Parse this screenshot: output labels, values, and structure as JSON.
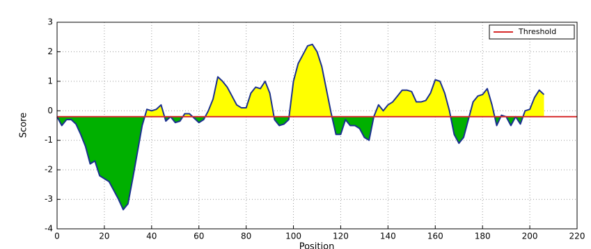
{
  "chart_data": {
    "type": "area",
    "x_label": "Position",
    "y_label": "Score",
    "x": [
      0,
      2,
      4,
      6,
      8,
      10,
      12,
      14,
      16,
      18,
      20,
      22,
      24,
      26,
      28,
      30,
      32,
      34,
      36,
      38,
      40,
      42,
      44,
      46,
      48,
      50,
      52,
      54,
      56,
      58,
      60,
      62,
      64,
      66,
      68,
      70,
      72,
      74,
      76,
      78,
      80,
      82,
      84,
      86,
      88,
      90,
      92,
      94,
      96,
      98,
      100,
      102,
      104,
      106,
      108,
      110,
      112,
      114,
      116,
      118,
      120,
      122,
      124,
      126,
      128,
      130,
      132,
      134,
      136,
      138,
      140,
      142,
      144,
      146,
      148,
      150,
      152,
      154,
      156,
      158,
      160,
      162,
      164,
      166,
      168,
      170,
      172,
      174,
      176,
      178,
      180,
      182,
      184,
      186,
      188,
      190,
      192,
      194,
      196,
      198,
      200,
      202,
      204,
      206
    ],
    "values": [
      -0.2,
      -0.5,
      -0.3,
      -0.3,
      -0.45,
      -0.8,
      -1.2,
      -1.8,
      -1.7,
      -2.2,
      -2.3,
      -2.4,
      -2.7,
      -3.0,
      -3.35,
      -3.15,
      -2.3,
      -1.4,
      -0.5,
      0.05,
      0.0,
      0.05,
      0.2,
      -0.35,
      -0.2,
      -0.4,
      -0.35,
      -0.1,
      -0.1,
      -0.25,
      -0.4,
      -0.3,
      0.0,
      0.4,
      1.15,
      1.0,
      0.8,
      0.5,
      0.2,
      0.1,
      0.1,
      0.6,
      0.8,
      0.75,
      1.0,
      0.6,
      -0.3,
      -0.5,
      -0.45,
      -0.3,
      1.0,
      1.6,
      1.9,
      2.2,
      2.25,
      2.0,
      1.5,
      0.7,
      -0.1,
      -0.8,
      -0.8,
      -0.3,
      -0.5,
      -0.5,
      -0.6,
      -0.9,
      -1.0,
      -0.2,
      0.2,
      0.0,
      0.2,
      0.3,
      0.5,
      0.7,
      0.7,
      0.65,
      0.3,
      0.3,
      0.35,
      0.6,
      1.05,
      1.0,
      0.6,
      0.0,
      -0.8,
      -1.1,
      -0.9,
      -0.3,
      0.3,
      0.5,
      0.55,
      0.75,
      0.2,
      -0.5,
      -0.15,
      -0.2,
      -0.5,
      -0.2,
      -0.45,
      0.0,
      0.05,
      0.45,
      0.7,
      0.55
    ],
    "line_color": "#1a2f8f",
    "above_color": "#ffff00",
    "below_color": "#00b000",
    "threshold": {
      "name": "Threshold",
      "value": -0.2,
      "color": "#d62728"
    },
    "xlim": [
      0,
      220
    ],
    "xticks": [
      0,
      20,
      40,
      60,
      80,
      100,
      120,
      140,
      160,
      180,
      200,
      220
    ],
    "ylim": [
      -4,
      3
    ],
    "yticks": [
      -4,
      -3,
      -2,
      -1,
      0,
      1,
      2,
      3
    ],
    "grid": true,
    "legend_position": "upper right"
  }
}
